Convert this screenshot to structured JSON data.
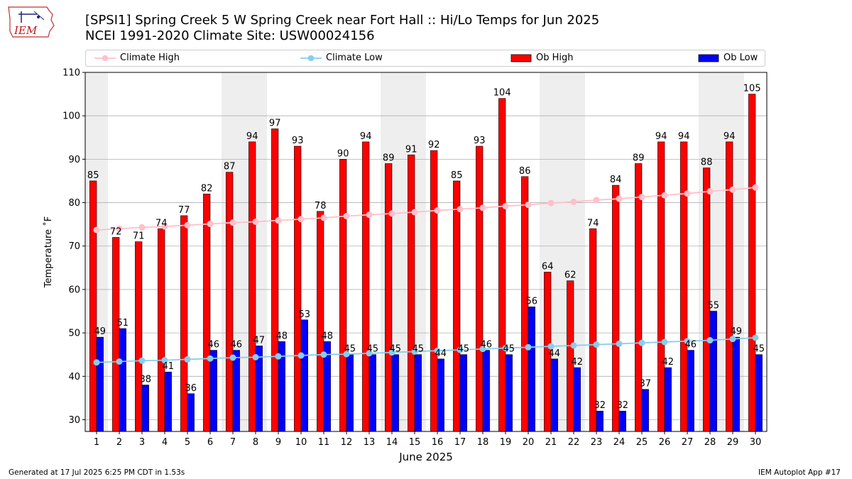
{
  "header": {
    "logo_text": "IEM",
    "title_line1": "[SPSI1] Spring Creek 5 W Spring Creek near Fort Hall :: Hi/Lo Temps for Jun 2025",
    "title_line2": "NCEI 1991-2020 Climate Site: USW00024156"
  },
  "legend": {
    "climate_high": "Climate High",
    "climate_low": "Climate Low",
    "ob_high": "Ob High",
    "ob_low": "Ob Low",
    "placement": "top"
  },
  "colors": {
    "ob_high": "#ff0000",
    "ob_low": "#0000ff",
    "climate_high": "#ffc0cb",
    "climate_low": "#87ceeb",
    "weekend_shade": "#eeeeee",
    "grid": "#b0b0b0"
  },
  "footer": {
    "left": "Generated at 17 Jul 2025 6:25 PM CDT in 1.53s",
    "right": "IEM Autoplot App #17"
  },
  "chart_data": {
    "type": "bar",
    "xlabel": "June 2025",
    "ylabel": "Temperature ˚F",
    "ylim": [
      27.3,
      110
    ],
    "yticks": [
      30,
      40,
      50,
      60,
      70,
      80,
      90,
      100,
      110
    ],
    "grid": true,
    "categories": [
      1,
      2,
      3,
      4,
      5,
      6,
      7,
      8,
      9,
      10,
      11,
      12,
      13,
      14,
      15,
      16,
      17,
      18,
      19,
      20,
      21,
      22,
      23,
      24,
      25,
      26,
      27,
      28,
      29,
      30
    ],
    "shaded_days": [
      1,
      7,
      8,
      14,
      15,
      21,
      22,
      28,
      29
    ],
    "series": [
      {
        "name": "Ob High",
        "kind": "bar",
        "values": [
          85,
          72,
          71,
          74,
          77,
          82,
          87,
          94,
          97,
          93,
          78,
          90,
          94,
          89,
          91,
          92,
          85,
          93,
          104,
          86,
          64,
          62,
          74,
          84,
          89,
          94,
          94,
          88,
          94,
          105
        ]
      },
      {
        "name": "Ob Low",
        "kind": "bar",
        "values": [
          49,
          51,
          38,
          41,
          36,
          46,
          46,
          47,
          48,
          53,
          48,
          45,
          45,
          45,
          45,
          44,
          45,
          46,
          45,
          56,
          44,
          42,
          32,
          32,
          37,
          42,
          46,
          55,
          49,
          45
        ]
      },
      {
        "name": "Climate High",
        "kind": "line",
        "values": [
          73.7,
          74.0,
          74.3,
          74.5,
          74.8,
          75.1,
          75.4,
          75.6,
          75.9,
          76.2,
          76.5,
          76.9,
          77.2,
          77.5,
          77.8,
          78.2,
          78.5,
          78.8,
          79.2,
          79.5,
          79.9,
          80.2,
          80.6,
          80.9,
          81.3,
          81.7,
          82.1,
          82.6,
          83.0,
          83.5
        ]
      },
      {
        "name": "Climate Low",
        "kind": "line",
        "values": [
          43.2,
          43.4,
          43.6,
          43.7,
          43.9,
          44.1,
          44.3,
          44.4,
          44.6,
          44.8,
          45.0,
          45.1,
          45.3,
          45.5,
          45.7,
          45.9,
          46.1,
          46.3,
          46.5,
          46.7,
          46.9,
          47.1,
          47.3,
          47.5,
          47.7,
          47.9,
          48.1,
          48.3,
          48.6,
          48.9
        ]
      }
    ]
  }
}
